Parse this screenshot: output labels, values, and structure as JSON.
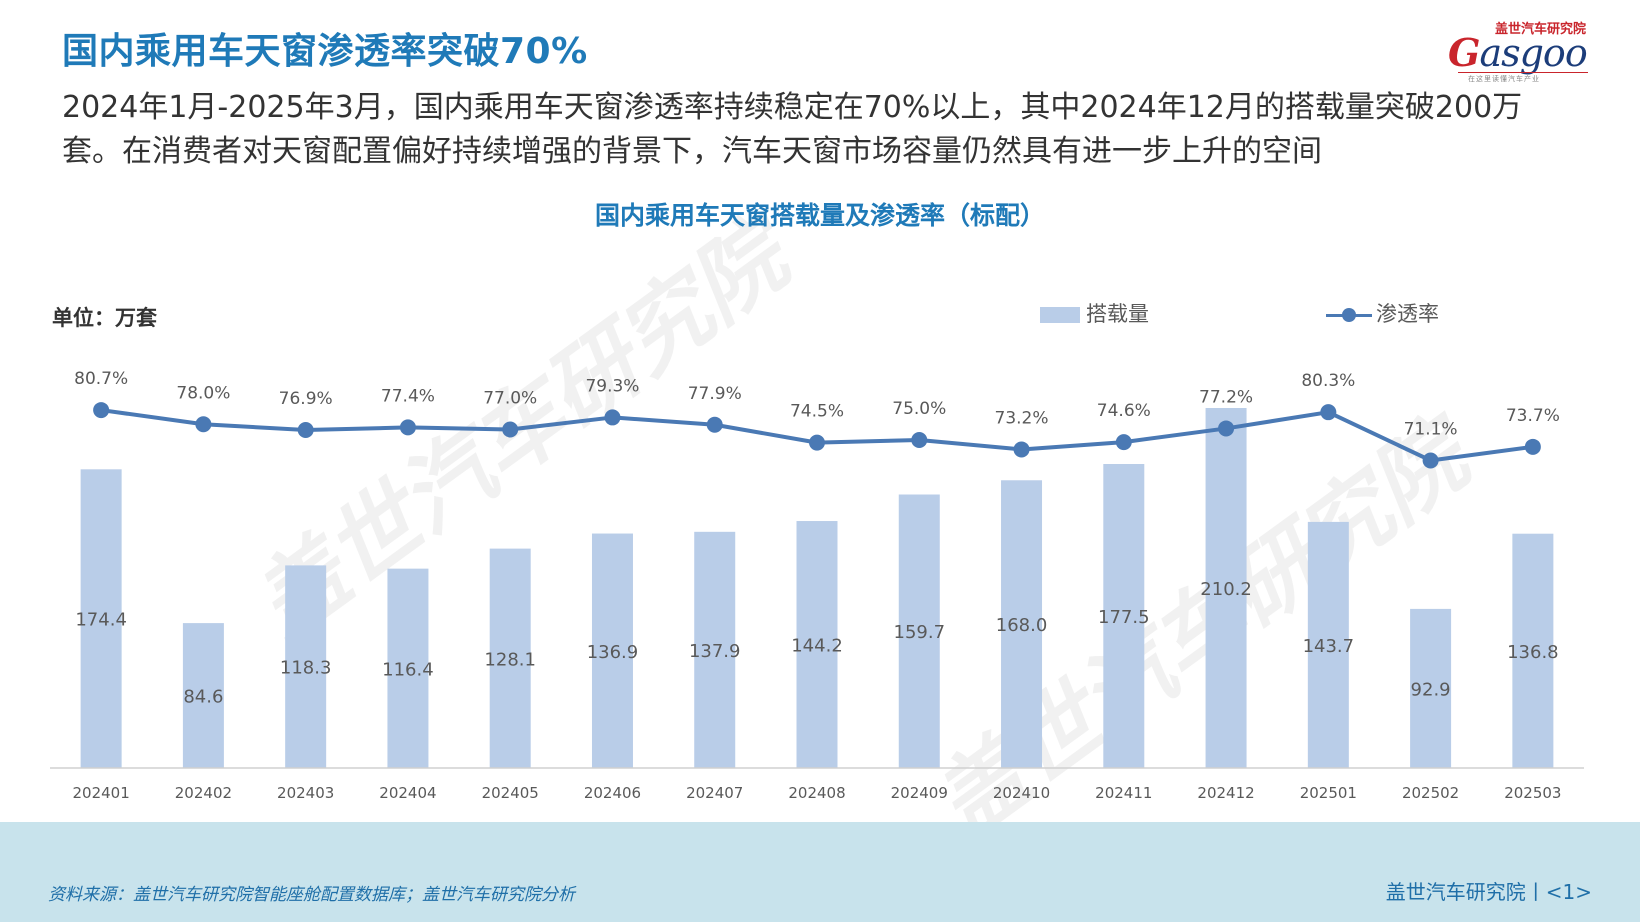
{
  "header": {
    "title": "国内乘用车天窗渗透率突破70%",
    "subtitle": "2024年1月-2025年3月，国内乘用车天窗渗透率持续稳定在70%以上，其中2024年12月的搭载量突破200万套。在消费者对天窗配置偏好持续增强的背景下，汽车天窗市场容量仍然具有进一步上升的空间"
  },
  "logo": {
    "cn": "盖世汽车研究院",
    "word_g": "G",
    "word_rest": "asgoo",
    "tag": "在这里读懂汽车产业"
  },
  "chart_title": "国内乘用车天窗搭载量及渗透率（标配）",
  "unit_label": "单位：万套",
  "legend": {
    "bar": "搭载量",
    "line": "渗透率"
  },
  "chart_data": {
    "type": "bar",
    "title": "国内乘用车天窗搭载量及渗透率（标配）",
    "unit": "单位：万套",
    "categories": [
      "202401",
      "202402",
      "202403",
      "202404",
      "202405",
      "202406",
      "202407",
      "202408",
      "202409",
      "202410",
      "202411",
      "202412",
      "202501",
      "202502",
      "202503"
    ],
    "series": [
      {
        "name": "搭载量",
        "type": "bar",
        "color": "#b9cde8",
        "values": [
          174.4,
          84.6,
          118.3,
          116.4,
          128.1,
          136.9,
          137.9,
          144.2,
          159.7,
          168.0,
          177.5,
          210.2,
          143.7,
          92.9,
          136.8
        ],
        "labels": [
          "174.4",
          "84.6",
          "118.3",
          "116.4",
          "128.1",
          "136.9",
          "137.9",
          "144.2",
          "159.7",
          "168.0",
          "177.5",
          "210.2",
          "143.7",
          "92.9",
          "136.8"
        ]
      },
      {
        "name": "渗透率",
        "type": "line",
        "color": "#4a79b4",
        "values": [
          80.7,
          78.0,
          76.9,
          77.4,
          77.0,
          79.3,
          77.9,
          74.5,
          75.0,
          73.2,
          74.6,
          77.2,
          80.3,
          71.1,
          73.7
        ],
        "labels": [
          "80.7%",
          "78.0%",
          "76.9%",
          "77.4%",
          "77.0%",
          "79.3%",
          "77.9%",
          "74.5%",
          "75.0%",
          "73.2%",
          "74.6%",
          "77.2%",
          "80.3%",
          "71.1%",
          "73.7%"
        ]
      }
    ],
    "legend_position": "top-right",
    "grid": false
  },
  "watermark": "盖世汽车研究院",
  "footer": {
    "source": "资料来源：盖世汽车研究院智能座舱配置数据库；盖世汽车研究院分析",
    "brand": "盖世汽车研究院丨<1>"
  }
}
